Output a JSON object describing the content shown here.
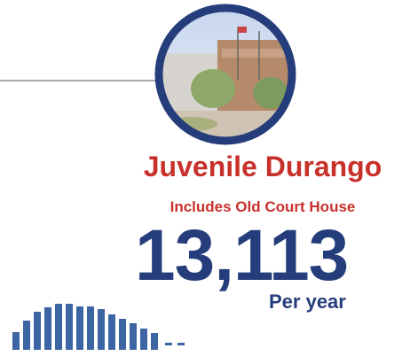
{
  "title": "Juvenile Durango",
  "subtitle": "Includes Old Court House",
  "count": "13,113",
  "unit": "Per year"
}
